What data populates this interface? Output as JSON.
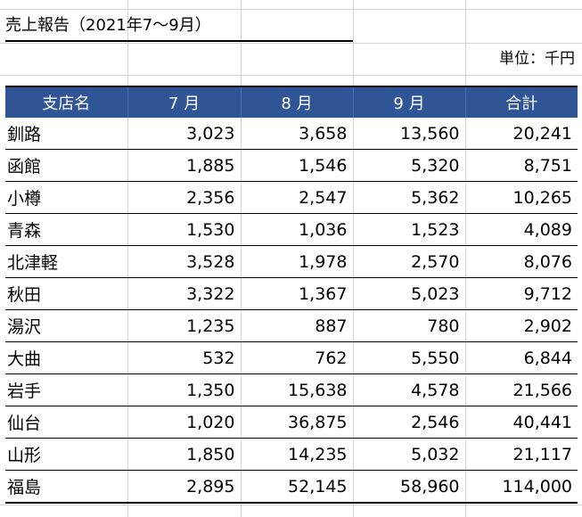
{
  "title": "売上報告（2021年7～9月）",
  "unit": "単位：千円",
  "header_color": "#2f5597",
  "columns": [
    "支店名",
    "7 月",
    "8 月",
    "9 月",
    "合計"
  ],
  "rows": [
    {
      "branch": "釧路",
      "jul": "3,023",
      "aug": "3,658",
      "sep": "13,560",
      "total": "20,241"
    },
    {
      "branch": "函館",
      "jul": "1,885",
      "aug": "1,546",
      "sep": "5,320",
      "total": "8,751"
    },
    {
      "branch": "小樽",
      "jul": "2,356",
      "aug": "2,547",
      "sep": "5,362",
      "total": "10,265"
    },
    {
      "branch": "青森",
      "jul": "1,530",
      "aug": "1,036",
      "sep": "1,523",
      "total": "4,089"
    },
    {
      "branch": "北津軽",
      "jul": "3,528",
      "aug": "1,978",
      "sep": "2,570",
      "total": "8,076"
    },
    {
      "branch": "秋田",
      "jul": "3,322",
      "aug": "1,367",
      "sep": "5,023",
      "total": "9,712"
    },
    {
      "branch": "湯沢",
      "jul": "1,235",
      "aug": "887",
      "sep": "780",
      "total": "2,902"
    },
    {
      "branch": "大曲",
      "jul": "532",
      "aug": "762",
      "sep": "5,550",
      "total": "6,844"
    },
    {
      "branch": "岩手",
      "jul": "1,350",
      "aug": "15,638",
      "sep": "4,578",
      "total": "21,566"
    },
    {
      "branch": "仙台",
      "jul": "1,020",
      "aug": "36,875",
      "sep": "2,546",
      "total": "40,441"
    },
    {
      "branch": "山形",
      "jul": "1,850",
      "aug": "14,235",
      "sep": "5,032",
      "total": "21,117"
    },
    {
      "branch": "福島",
      "jul": "2,895",
      "aug": "52,145",
      "sep": "58,960",
      "total": "114,000"
    }
  ]
}
